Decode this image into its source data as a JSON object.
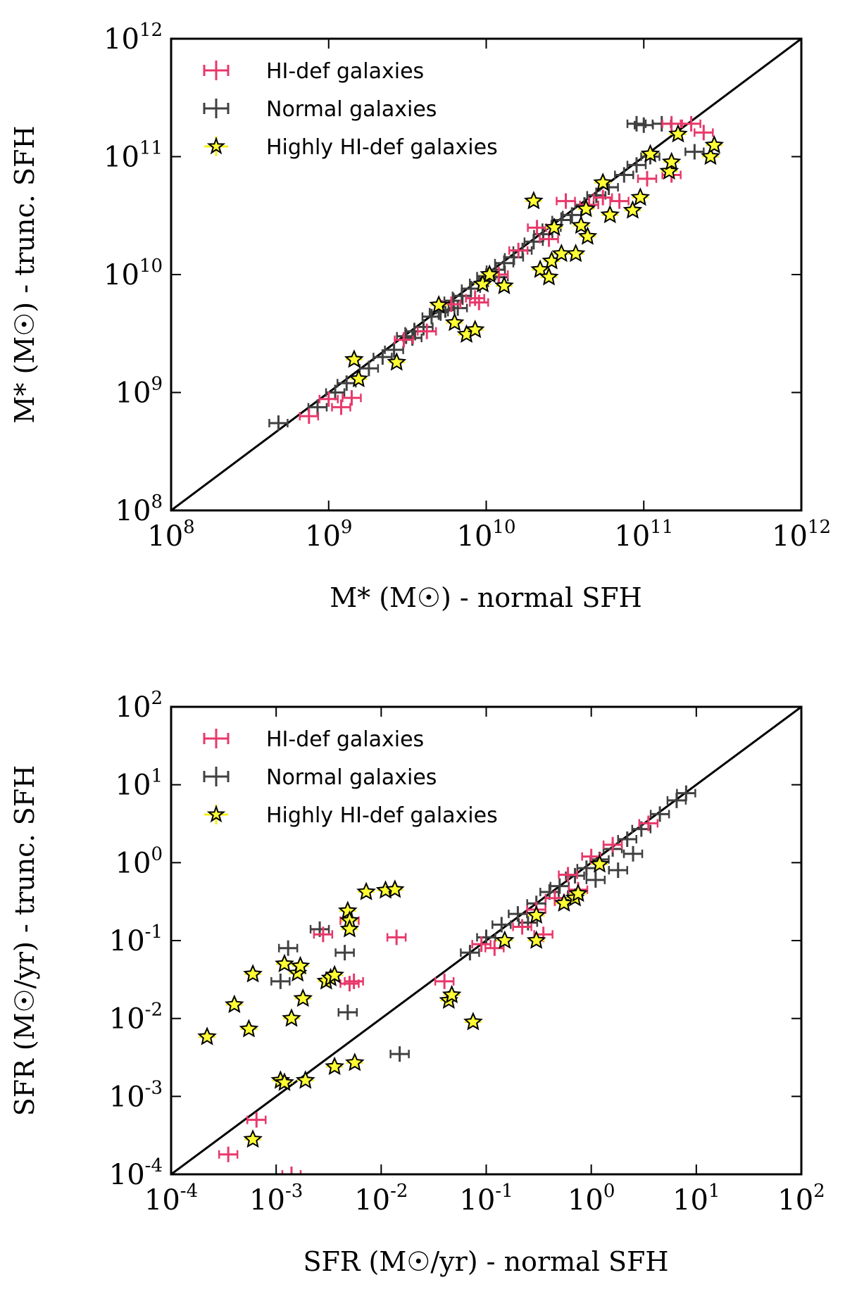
{
  "colors": {
    "hidef": "#e8386a",
    "normal": "#404040",
    "highly": "#f5f01e",
    "star_fill": "#ffff33",
    "line": "#000000"
  },
  "chart_data": [
    {
      "type": "scatter",
      "scale": "log",
      "title": "",
      "xlabel": "M* (M☉) - normal SFH",
      "ylabel": "M* (M☉) - trunc. SFH",
      "xlim": [
        100000000.0,
        1000000000000.0
      ],
      "ylim": [
        100000000.0,
        1000000000000.0
      ],
      "tick_exps": [
        8,
        9,
        10,
        11,
        12
      ],
      "tick_labels": [
        "10^8",
        "10^9",
        "10^10",
        "10^11",
        "10^12"
      ],
      "one_to_one_line": true,
      "legend": {
        "position": "top-left",
        "entries": [
          "HI-def galaxies",
          "Normal galaxies",
          "Highly HI-def galaxies"
        ]
      },
      "series": [
        {
          "name": "Normal galaxies",
          "marker": "errorbar",
          "color": "#404040",
          "points": [
            [
              480000000.0,
              550000000.0
            ],
            [
              850000000.0,
              750000000.0
            ],
            [
              1100000000.0,
              1000000000.0
            ],
            [
              1300000000.0,
              1200000000.0
            ],
            [
              1800000000.0,
              1600000000.0
            ],
            [
              2200000000.0,
              2000000000.0
            ],
            [
              2600000000.0,
              2300000000.0
            ],
            [
              3100000000.0,
              3000000000.0
            ],
            [
              3500000000.0,
              3300000000.0
            ],
            [
              4000000000.0,
              3600000000.0
            ],
            [
              4500000000.0,
              4400000000.0
            ],
            [
              5000000000.0,
              4800000000.0
            ],
            [
              5500000000.0,
              5000000000.0
            ],
            [
              6200000000.0,
              6000000000.0
            ],
            [
              7000000000.0,
              6600000000.0
            ],
            [
              8000000000.0,
              7600000000.0
            ],
            [
              9000000000.0,
              8500000000.0
            ],
            [
              10000000000.0,
              9700000000.0
            ],
            [
              11500000000.0,
              11000000000.0
            ],
            [
              13000000000.0,
              12500000000.0
            ],
            [
              15000000000.0,
              14000000000.0
            ],
            [
              17000000000.0,
              16000000000.0
            ],
            [
              20000000000.0,
              19000000000.0
            ],
            [
              23000000000.0,
              22000000000.0
            ],
            [
              26000000000.0,
              25000000000.0
            ],
            [
              30000000000.0,
              29000000000.0
            ],
            [
              35000000000.0,
              32000000000.0
            ],
            [
              42000000000.0,
              39000000000.0
            ],
            [
              50000000000.0,
              47000000000.0
            ],
            [
              60000000000.0,
              55000000000.0
            ],
            [
              75000000000.0,
              70000000000.0
            ],
            [
              90000000000.0,
              85000000000.0
            ],
            [
              110000000000.0,
              100000000000.0
            ],
            [
              90000000000.0,
              190000000000.0
            ],
            [
              100000000000.0,
              185000000000.0
            ],
            [
              130000000000.0,
              190000000000.0
            ],
            [
              210000000000.0,
              110000000000.0
            ],
            [
              3400000000.0,
              2900000000.0
            ],
            [
              6600000000.0,
              5200000000.0
            ],
            [
              12000000000.0,
              9500000000.0
            ]
          ]
        },
        {
          "name": "HI-def galaxies",
          "marker": "errorbar",
          "color": "#e8386a",
          "points": [
            [
              750000000.0,
              630000000.0
            ],
            [
              1000000000.0,
              880000000.0
            ],
            [
              1200000000.0,
              750000000.0
            ],
            [
              1400000000.0,
              900000000.0
            ],
            [
              3000000000.0,
              2800000000.0
            ],
            [
              4200000000.0,
              3300000000.0
            ],
            [
              6000000000.0,
              5600000000.0
            ],
            [
              8500000000.0,
              6300000000.0
            ],
            [
              9000000000.0,
              5800000000.0
            ],
            [
              12000000000.0,
              10000000000.0
            ],
            [
              16000000000.0,
              16000000000.0
            ],
            [
              21000000000.0,
              25000000000.0
            ],
            [
              25000000000.0,
              20000000000.0
            ],
            [
              32000000000.0,
              42000000000.0
            ],
            [
              45000000000.0,
              39000000000.0
            ],
            [
              55000000000.0,
              45000000000.0
            ],
            [
              70000000000.0,
              42000000000.0
            ],
            [
              105000000000.0,
              65000000000.0
            ],
            [
              150000000000.0,
              190000000000.0
            ],
            [
              200000000000.0,
              190000000000.0
            ],
            [
              240000000000.0,
              160000000000.0
            ],
            [
              150000000000.0,
              70000000000.0
            ]
          ]
        },
        {
          "name": "Highly HI-def galaxies",
          "marker": "star",
          "color": "#f5f01e",
          "points": [
            [
              1450000000.0,
              1900000000.0
            ],
            [
              1550000000.0,
              1300000000.0
            ],
            [
              2700000000.0,
              1800000000.0
            ],
            [
              5000000000.0,
              5500000000.0
            ],
            [
              6300000000.0,
              3900000000.0
            ],
            [
              7500000000.0,
              3100000000.0
            ],
            [
              8500000000.0,
              3400000000.0
            ],
            [
              9500000000.0,
              8300000000.0
            ],
            [
              10500000000.0,
              10000000000.0
            ],
            [
              13000000000.0,
              8000000000.0
            ],
            [
              20000000000.0,
              42000000000.0
            ],
            [
              22000000000.0,
              11000000000.0
            ],
            [
              25000000000.0,
              9500000000.0
            ],
            [
              26000000000.0,
              13000000000.0
            ],
            [
              27000000000.0,
              25000000000.0
            ],
            [
              30000000000.0,
              15000000000.0
            ],
            [
              37000000000.0,
              15000000000.0
            ],
            [
              40000000000.0,
              26000000000.0
            ],
            [
              43000000000.0,
              36000000000.0
            ],
            [
              44000000000.0,
              21000000000.0
            ],
            [
              55000000000.0,
              60000000000.0
            ],
            [
              61000000000.0,
              32000000000.0
            ],
            [
              85000000000.0,
              35000000000.0
            ],
            [
              95000000000.0,
              45000000000.0
            ],
            [
              110000000000.0,
              105000000000.0
            ],
            [
              145000000000.0,
              75000000000.0
            ],
            [
              150000000000.0,
              90000000000.0
            ],
            [
              165000000000.0,
              155000000000.0
            ],
            [
              265000000000.0,
              100000000000.0
            ],
            [
              280000000000.0,
              125000000000.0
            ]
          ]
        }
      ]
    },
    {
      "type": "scatter",
      "scale": "log",
      "title": "",
      "xlabel": "SFR (M☉/yr) - normal SFH",
      "ylabel": "SFR (M☉/yr) - trunc. SFH",
      "xlim": [
        0.0001,
        100.0
      ],
      "ylim": [
        0.0001,
        100.0
      ],
      "tick_exps": [
        -4,
        -3,
        -2,
        -1,
        0,
        1,
        2
      ],
      "tick_labels": [
        "10^-4",
        "10^-3",
        "10^-2",
        "10^-1",
        "10^0",
        "10^1",
        "10^2"
      ],
      "one_to_one_line": true,
      "legend": {
        "position": "top-left",
        "entries": [
          "HI-def galaxies",
          "Normal galaxies",
          "Highly HI-def galaxies"
        ]
      },
      "series": [
        {
          "name": "Normal galaxies",
          "marker": "errorbar",
          "color": "#404040",
          "points": [
            [
              0.0011,
              0.03
            ],
            [
              0.0013,
              0.08
            ],
            [
              0.0026,
              0.14
            ],
            [
              0.0045,
              0.07
            ],
            [
              0.0048,
              0.012
            ],
            [
              0.015,
              0.0035
            ],
            [
              0.07,
              0.07
            ],
            [
              0.1,
              0.11
            ],
            [
              0.14,
              0.16
            ],
            [
              0.2,
              0.22
            ],
            [
              0.3,
              0.3
            ],
            [
              0.4,
              0.42
            ],
            [
              0.5,
              0.5
            ],
            [
              0.7,
              0.68
            ],
            [
              0.9,
              0.85
            ],
            [
              1.2,
              1.1
            ],
            [
              1.6,
              1.5
            ],
            [
              2.2,
              2.0
            ],
            [
              3.0,
              2.7
            ],
            [
              4.5,
              4.2
            ],
            [
              6.5,
              6.3
            ],
            [
              8.0,
              7.8
            ],
            [
              2.5,
              1.3
            ],
            [
              1.8,
              0.8
            ],
            [
              0.25,
              0.17
            ],
            [
              0.6,
              0.35
            ],
            [
              1.1,
              0.6
            ]
          ]
        },
        {
          "name": "HI-def galaxies",
          "marker": "errorbar",
          "color": "#e8386a",
          "points": [
            [
              0.00035,
              0.00018
            ],
            [
              0.00065,
              0.0005
            ],
            [
              0.0014,
              0.0001
            ],
            [
              0.0028,
              0.12
            ],
            [
              0.005,
              0.028
            ],
            [
              0.005,
              0.18
            ],
            [
              0.0055,
              0.03
            ],
            [
              0.014,
              0.11
            ],
            [
              0.04,
              0.03
            ],
            [
              0.09,
              0.09
            ],
            [
              0.12,
              0.08
            ],
            [
              0.3,
              0.25
            ],
            [
              0.45,
              0.35
            ],
            [
              0.6,
              0.7
            ],
            [
              0.75,
              0.45
            ],
            [
              1.0,
              1.2
            ],
            [
              1.6,
              1.7
            ],
            [
              3.5,
              3.2
            ],
            [
              0.35,
              0.12
            ],
            [
              0.22,
              0.15
            ]
          ]
        },
        {
          "name": "Highly HI-def galaxies",
          "marker": "star",
          "color": "#f5f01e",
          "points": [
            [
              0.00022,
              0.0058
            ],
            [
              0.0004,
              0.015
            ],
            [
              0.00055,
              0.0073
            ],
            [
              0.0006,
              0.037
            ],
            [
              0.0006,
              0.00028
            ],
            [
              0.0011,
              0.0016
            ],
            [
              0.0012,
              0.05
            ],
            [
              0.0012,
              0.0015
            ],
            [
              0.0014,
              0.01
            ],
            [
              0.0016,
              0.038
            ],
            [
              0.0017,
              0.047
            ],
            [
              0.0018,
              0.018
            ],
            [
              0.0019,
              0.0016
            ],
            [
              0.003,
              0.03
            ],
            [
              0.0033,
              0.033
            ],
            [
              0.0036,
              0.036
            ],
            [
              0.0036,
              0.0024
            ],
            [
              0.0048,
              0.24
            ],
            [
              0.005,
              0.18
            ],
            [
              0.005,
              0.14
            ],
            [
              0.0056,
              0.0027
            ],
            [
              0.0072,
              0.42
            ],
            [
              0.011,
              0.44
            ],
            [
              0.0135,
              0.45
            ],
            [
              0.044,
              0.017
            ],
            [
              0.047,
              0.02
            ],
            [
              0.075,
              0.009
            ],
            [
              0.15,
              0.1
            ],
            [
              0.3,
              0.21
            ],
            [
              0.3,
              0.1
            ],
            [
              0.55,
              0.3
            ],
            [
              0.7,
              0.35
            ],
            [
              0.75,
              0.4
            ],
            [
              1.2,
              0.95
            ]
          ]
        }
      ]
    }
  ]
}
